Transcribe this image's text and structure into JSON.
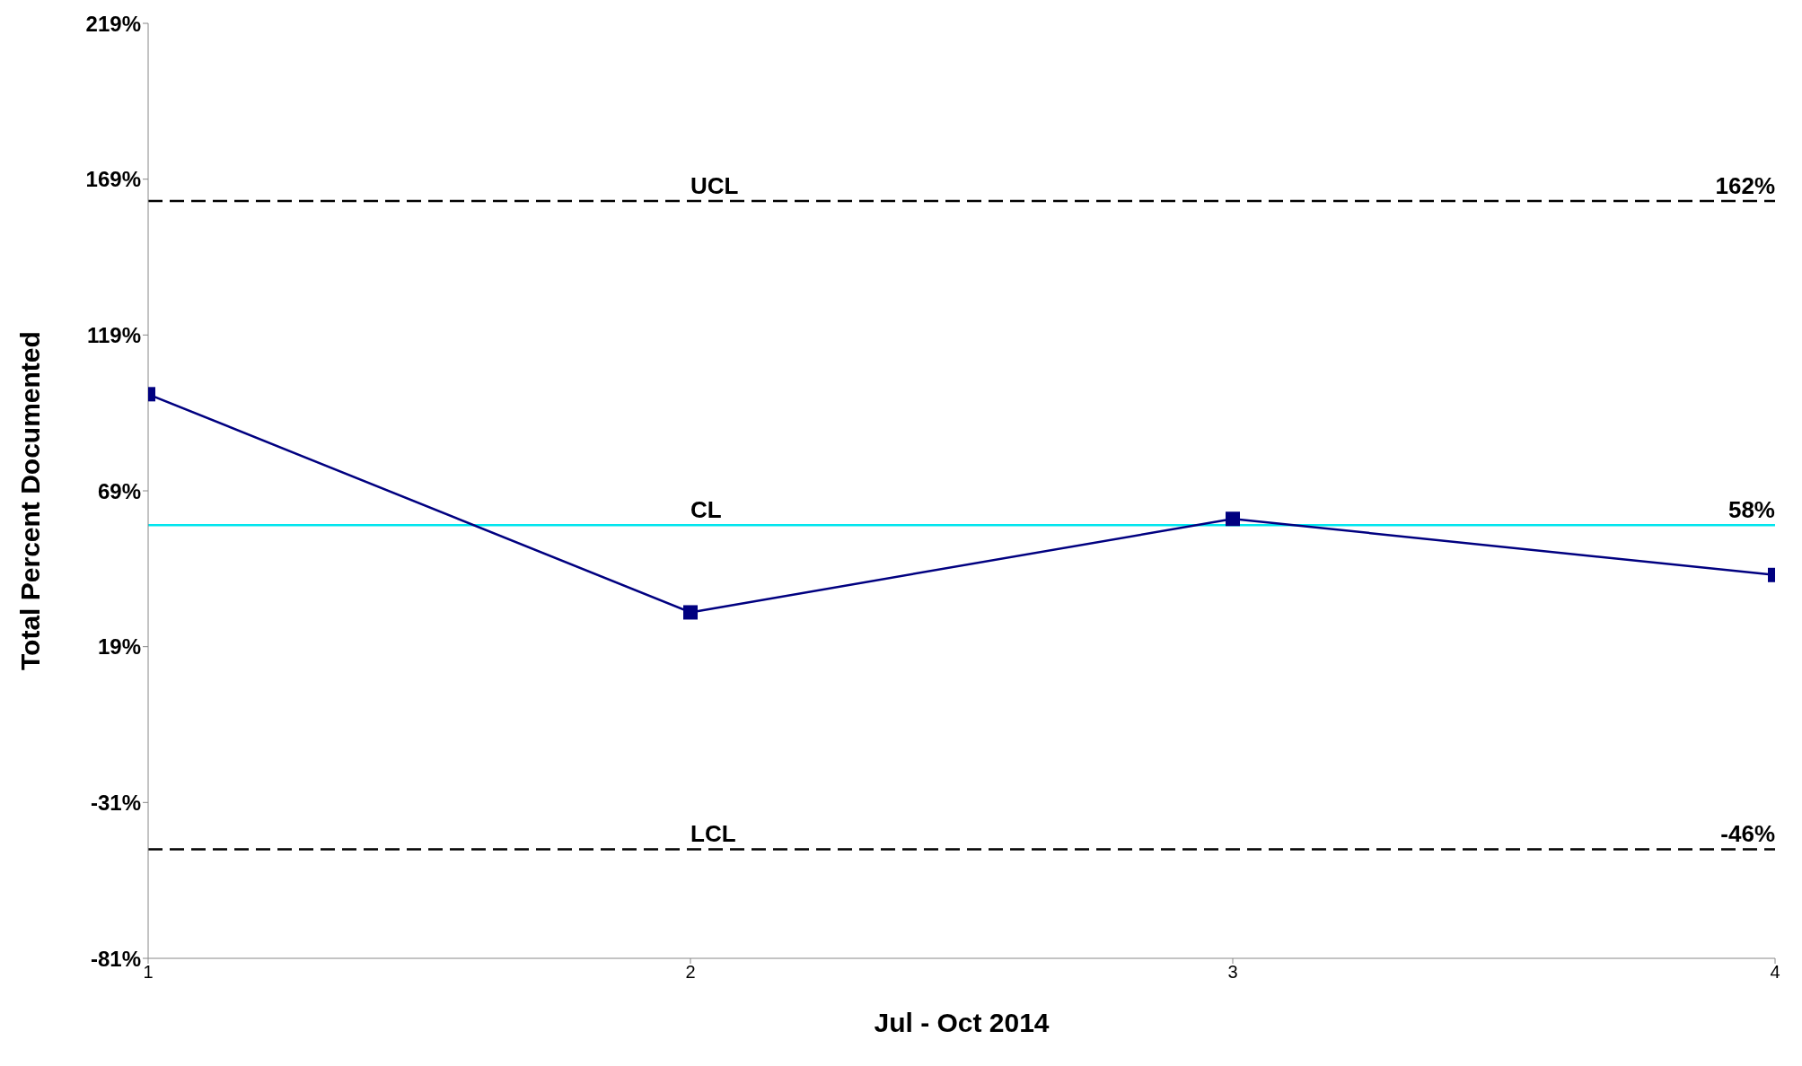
{
  "chart_data": {
    "type": "line",
    "xlabel": "Jul - Oct 2014",
    "ylabel": "Total Percent Documented",
    "x": [
      1,
      2,
      3,
      4
    ],
    "series": [
      {
        "color": "#000080",
        "values": [
          100,
          30,
          60,
          42
        ]
      }
    ],
    "xlim": [
      1,
      4
    ],
    "xticks": [
      1,
      2,
      3,
      4
    ],
    "ylim": [
      -81,
      219
    ],
    "yticks": [
      {
        "value": -81,
        "label": "-81%"
      },
      {
        "value": -31,
        "label": "-31%"
      },
      {
        "value": 19,
        "label": "19%"
      },
      {
        "value": 69,
        "label": "69%"
      },
      {
        "value": 119,
        "label": "119%"
      },
      {
        "value": 169,
        "label": "169%"
      },
      {
        "value": 219,
        "label": "219%"
      }
    ],
    "ref_lines": [
      {
        "axis": "y",
        "value": 162,
        "label": "UCL",
        "color": "#000000",
        "line_style": "dashed"
      },
      {
        "axis": "y",
        "value": 58,
        "label": "CL",
        "color": "#00e5ee",
        "line_style": "solid"
      },
      {
        "axis": "y",
        "value": -46,
        "label": "LCL",
        "color": "#000000",
        "line_style": "dashed"
      }
    ],
    "annotations": [
      {
        "text": "162%",
        "y": 162
      },
      {
        "text": "58%",
        "y": 58
      },
      {
        "text": "-46%",
        "y": -46
      }
    ],
    "grid": false,
    "legend": false,
    "marker": "square",
    "line_style": "solid"
  }
}
